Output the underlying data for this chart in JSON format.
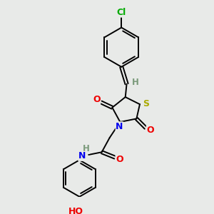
{
  "bg_color": "#e8eae8",
  "bond_color": "#000000",
  "atom_colors": {
    "H": "#7a9a7a",
    "N": "#0000ee",
    "O": "#ee0000",
    "S": "#aaaa00",
    "Cl": "#00aa00"
  },
  "figsize": [
    3.0,
    3.0
  ],
  "dpi": 100
}
